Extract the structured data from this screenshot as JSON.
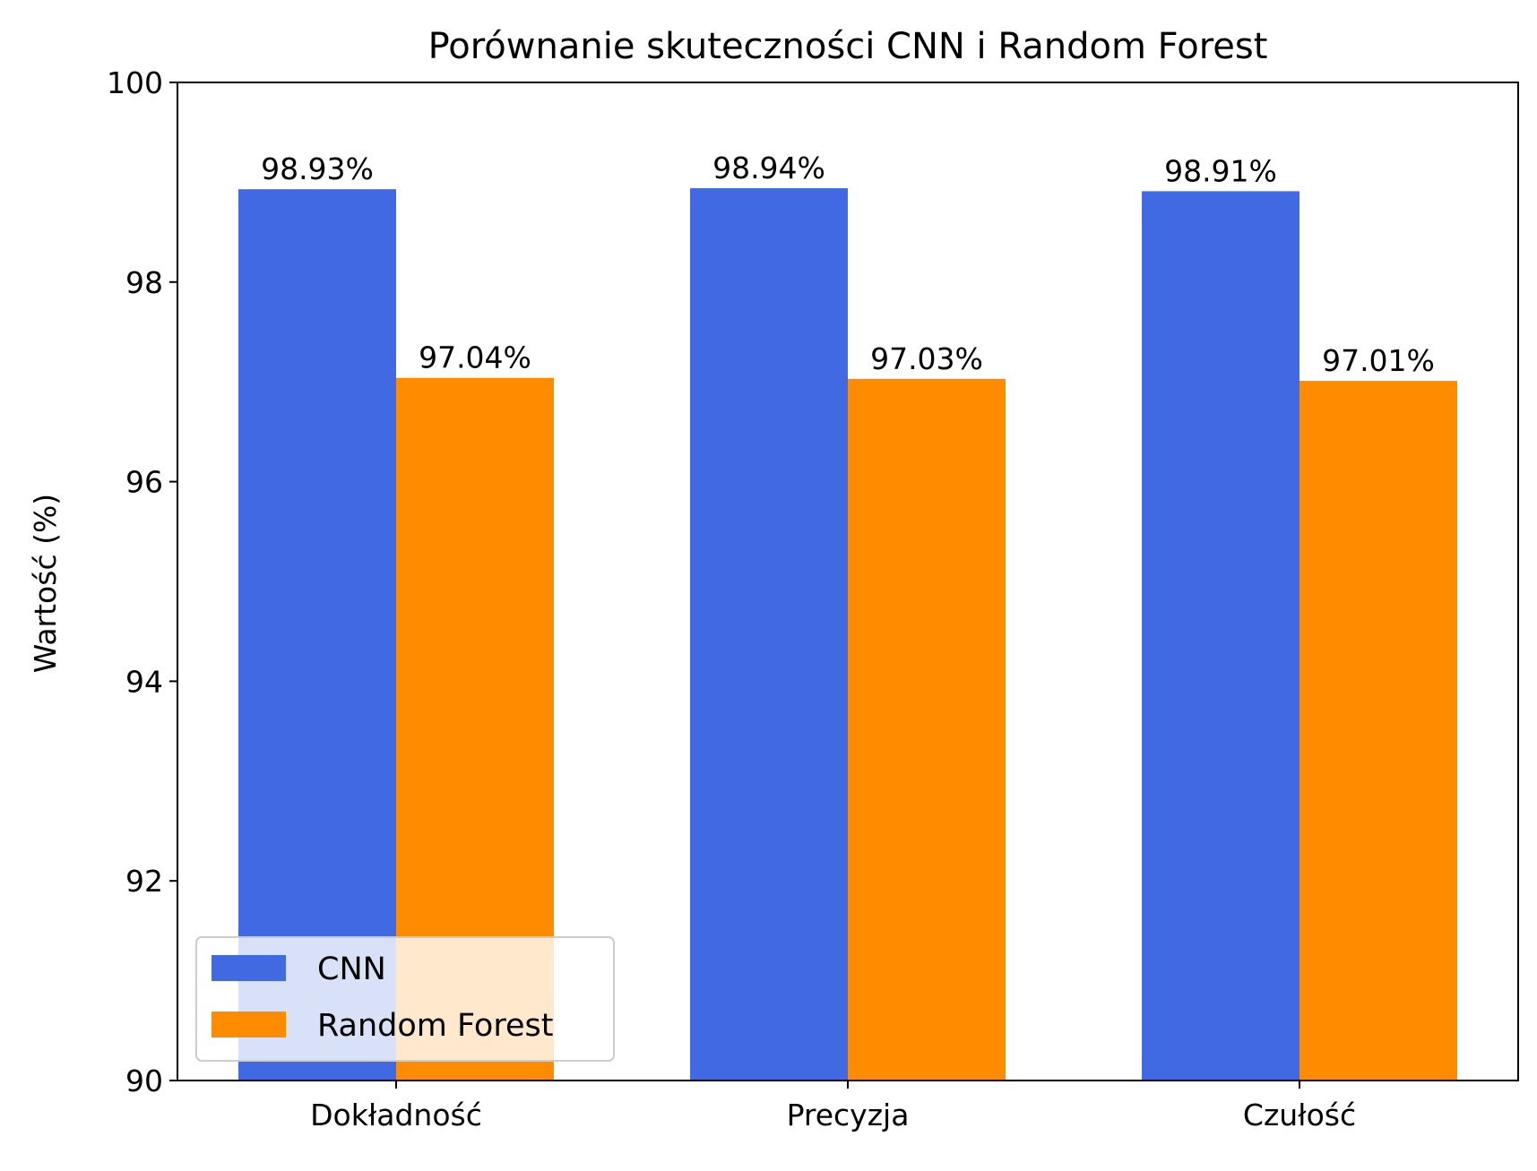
{
  "chart_data": {
    "type": "bar",
    "title": "Porównanie skuteczności CNN i Random Forest",
    "xlabel": "",
    "ylabel": "Wartość (%)",
    "ylim": [
      90,
      100
    ],
    "yticks": [
      90,
      92,
      94,
      96,
      98,
      100
    ],
    "categories": [
      "Dokładność",
      "Precyzja",
      "Czułość"
    ],
    "series": [
      {
        "name": "CNN",
        "color": "#4169E1",
        "values": [
          98.93,
          98.94,
          98.91
        ],
        "labels": [
          "98.93%",
          "98.94%",
          "98.91%"
        ]
      },
      {
        "name": "Random Forest",
        "color": "#FF8C00",
        "values": [
          97.04,
          97.03,
          97.01
        ],
        "labels": [
          "97.04%",
          "97.03%",
          "97.01%"
        ]
      }
    ],
    "legend": {
      "placement": "lower-left"
    },
    "grid": false
  }
}
